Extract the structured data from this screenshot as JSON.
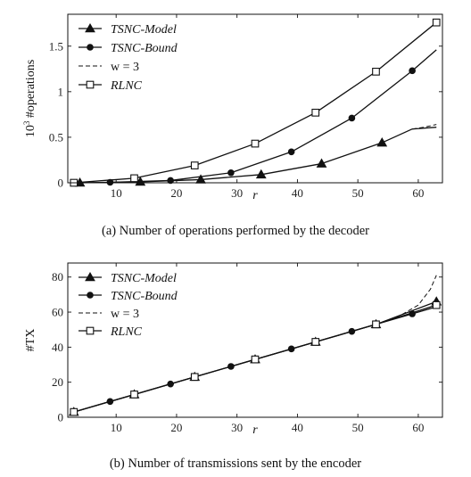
{
  "chart_data": [
    {
      "type": "line",
      "caption": "(a) Number of operations performed by the decoder",
      "xlabel": "r",
      "ylabel": "10^3 #operations",
      "xlim": [
        2,
        64
      ],
      "ylim": [
        0,
        1.85
      ],
      "xticks": [
        10,
        20,
        30,
        40,
        50,
        60
      ],
      "yticks": [
        0,
        0.5,
        1,
        1.5
      ],
      "ytick_labels": [
        "0",
        "0.5",
        "1",
        "1.5"
      ],
      "legend_position": "top-left",
      "grid": false,
      "series": [
        {
          "name": "TSNC-Model",
          "marker": "triangle",
          "dash": "solid",
          "x": [
            4,
            14,
            24,
            34,
            44,
            54,
            59,
            63
          ],
          "y": [
            0.0,
            0.01,
            0.035,
            0.09,
            0.21,
            0.44,
            0.59,
            0.61
          ],
          "marker_x": [
            4,
            14,
            24,
            34,
            44,
            54
          ]
        },
        {
          "name": "TSNC-Bound",
          "marker": "circle",
          "dash": "solid",
          "x": [
            3,
            9,
            19,
            29,
            39,
            49,
            59,
            63
          ],
          "y": [
            0.0,
            0.005,
            0.025,
            0.11,
            0.34,
            0.71,
            1.23,
            1.46
          ],
          "marker_x": [
            3,
            9,
            19,
            29,
            39,
            49,
            59
          ]
        },
        {
          "name": "w = 3",
          "name_math": true,
          "marker": "none",
          "dash": "dashed",
          "x": [
            59,
            61,
            63
          ],
          "y": [
            0.59,
            0.61,
            0.64
          ]
        },
        {
          "name": "RLNC",
          "marker": "square",
          "dash": "solid",
          "x": [
            3,
            13,
            23,
            33,
            43,
            53,
            63
          ],
          "y": [
            0.0,
            0.05,
            0.19,
            0.43,
            0.77,
            1.22,
            1.76
          ],
          "marker_x": [
            3,
            13,
            23,
            33,
            43,
            53,
            63
          ]
        }
      ]
    },
    {
      "type": "line",
      "caption": "(b) Number of transmissions sent by the encoder",
      "xlabel": "r",
      "ylabel": "#TX",
      "xlim": [
        2,
        64
      ],
      "ylim": [
        0,
        88
      ],
      "xticks": [
        10,
        20,
        30,
        40,
        50,
        60
      ],
      "yticks": [
        0,
        20,
        40,
        60,
        80
      ],
      "ytick_labels": [
        "0",
        "20",
        "40",
        "60",
        "80"
      ],
      "legend_position": "top-left",
      "grid": false,
      "series": [
        {
          "name": "TSNC-Model",
          "marker": "triangle",
          "dash": "solid",
          "x": [
            3,
            13,
            23,
            33,
            43,
            53,
            63
          ],
          "y": [
            3,
            13,
            23,
            33,
            43,
            53,
            66
          ],
          "marker_x": [
            3,
            13,
            23,
            33,
            43,
            53,
            63
          ]
        },
        {
          "name": "TSNC-Bound",
          "marker": "circle",
          "dash": "solid",
          "x": [
            3,
            9,
            19,
            29,
            39,
            49,
            59,
            63
          ],
          "y": [
            3,
            9,
            19,
            29,
            39,
            49,
            59,
            63
          ],
          "marker_x": [
            3,
            9,
            19,
            29,
            39,
            49,
            59
          ]
        },
        {
          "name": "w = 3",
          "name_math": true,
          "marker": "none",
          "dash": "dashed",
          "x": [
            3,
            13,
            23,
            33,
            43,
            53,
            57,
            60,
            62,
            63
          ],
          "y": [
            3,
            13,
            23,
            33,
            43,
            53,
            58,
            64,
            73,
            81
          ]
        },
        {
          "name": "RLNC",
          "marker": "square",
          "dash": "solid",
          "x": [
            3,
            13,
            23,
            33,
            43,
            53,
            63
          ],
          "y": [
            3,
            13,
            23,
            33,
            43,
            53,
            64
          ],
          "marker_x": [
            3,
            13,
            23,
            33,
            43,
            53,
            63
          ]
        }
      ]
    }
  ]
}
